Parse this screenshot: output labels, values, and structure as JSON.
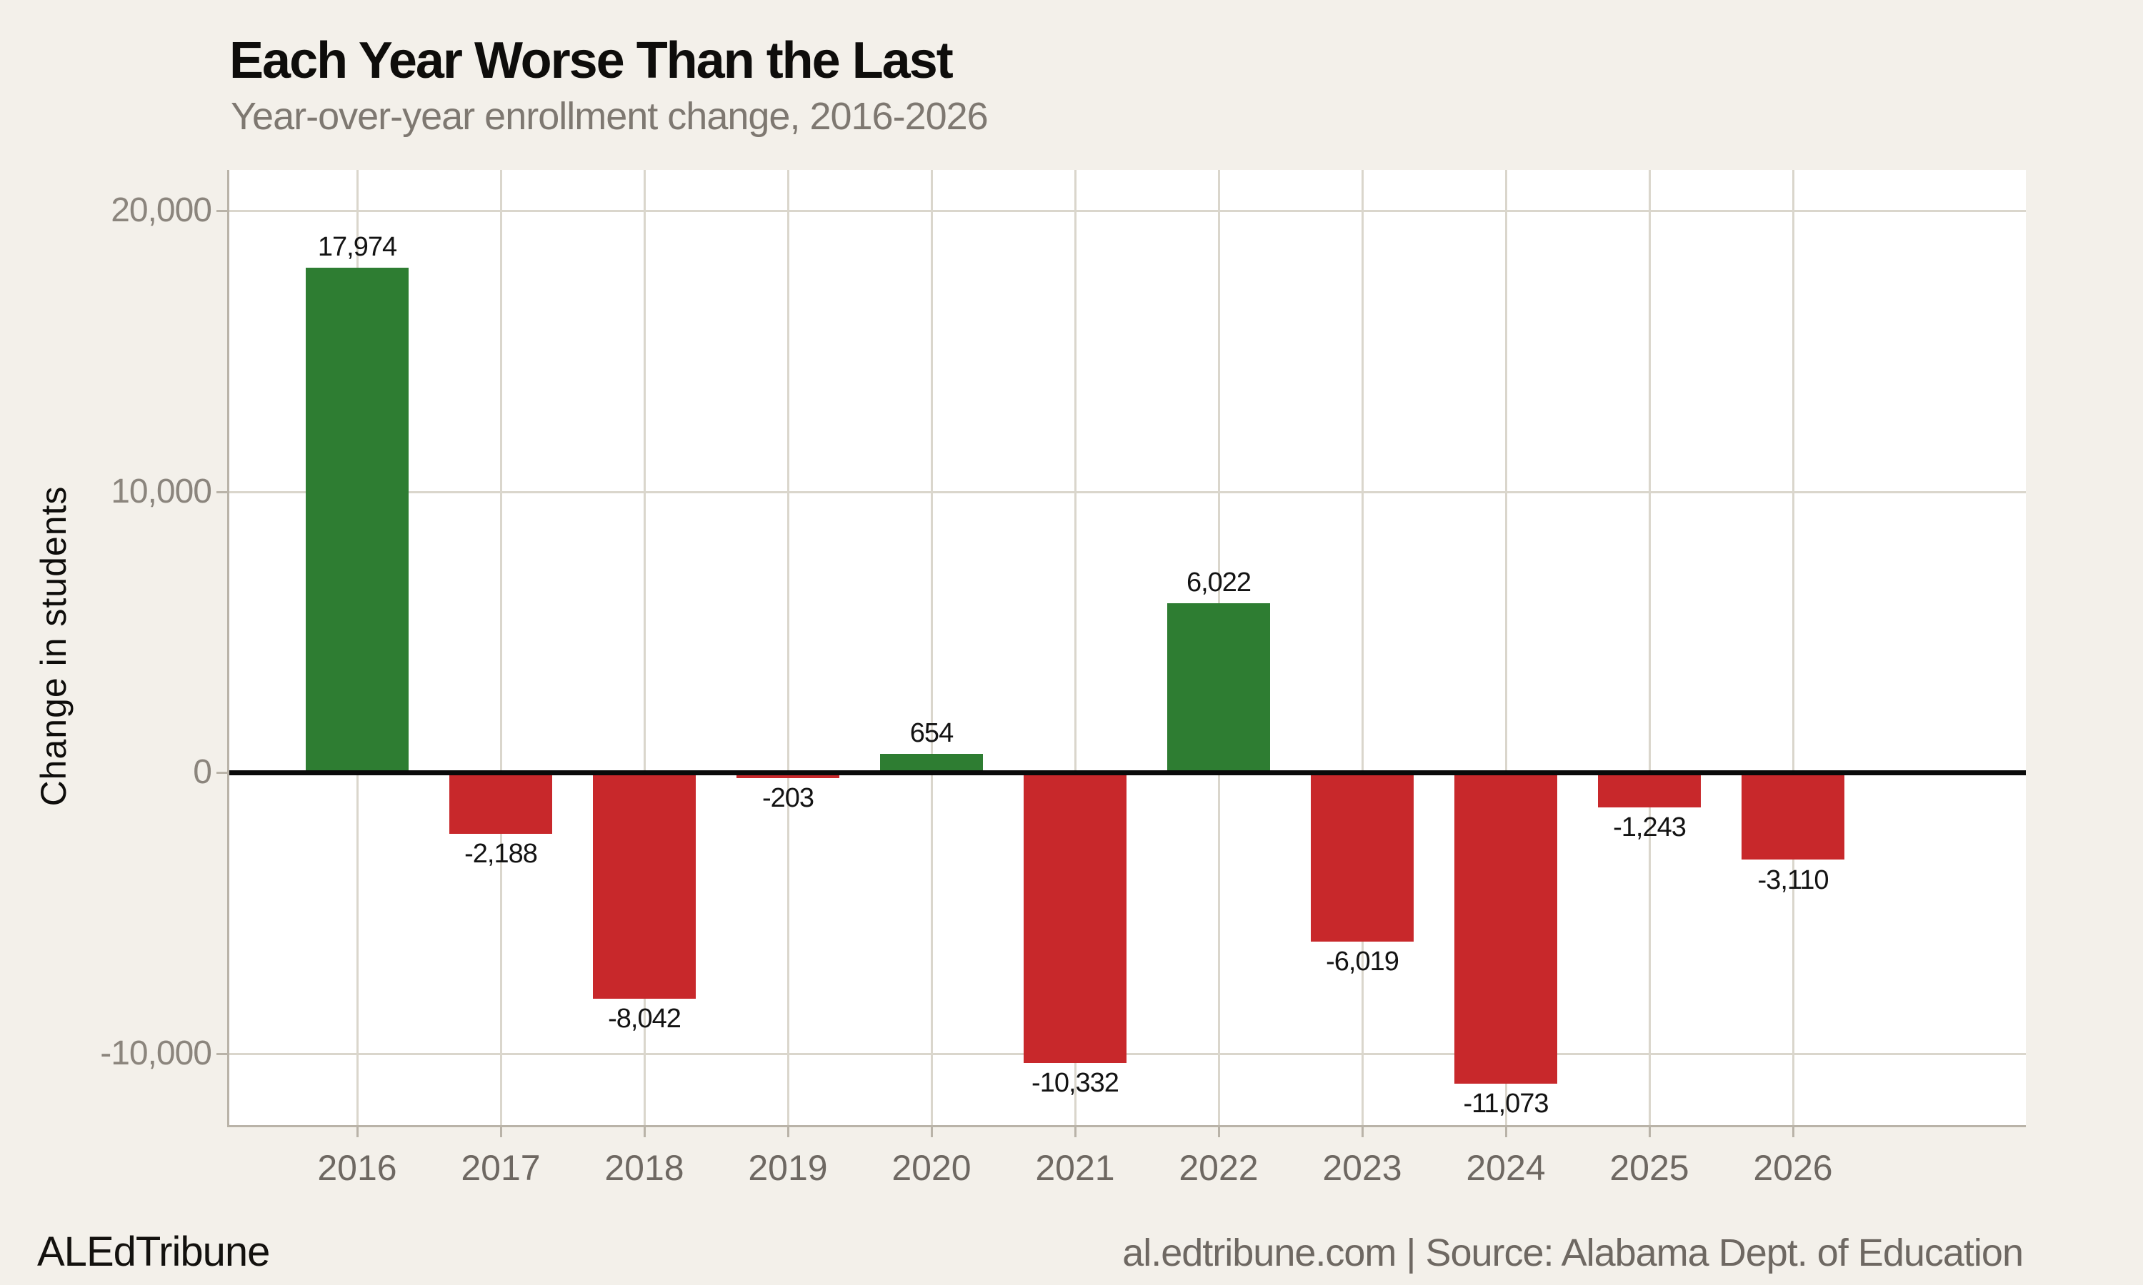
{
  "title": "Each Year Worse Than the Last",
  "subtitle": "Year-over-year enrollment change, 2016-2026",
  "footer": {
    "brand": "ALEdTribune",
    "source": "al.edtribune.com | Source: Alabama Dept. of Education"
  },
  "colors": {
    "background": "#f3f0ea",
    "plot_background": "#ffffff",
    "gridline": "#dad6cc",
    "axis_line": "#b9b3a8",
    "zero_line": "#0a0a0a",
    "positive_bar": "#2e7d32",
    "negative_bar": "#c8282b",
    "title_text": "#0e0d0b",
    "subtitle_text": "#7e7871",
    "y_tick_text": "#8b857d",
    "x_tick_text": "#6e6862",
    "value_label_text": "#131313",
    "footer_source_text": "#6e6862"
  },
  "chart_data": {
    "type": "bar",
    "title": "Each Year Worse Than the Last",
    "subtitle": "Year-over-year enrollment change, 2016-2026",
    "categories": [
      "2016",
      "2017",
      "2018",
      "2019",
      "2020",
      "2021",
      "2022",
      "2023",
      "2024",
      "2025",
      "2026"
    ],
    "values": [
      17974,
      -2188,
      -8042,
      -203,
      654,
      -10332,
      6022,
      -6019,
      -11073,
      -1243,
      -3110
    ],
    "value_labels": [
      "17,974",
      "-2,188",
      "-8,042",
      "-203",
      "654",
      "-10,332",
      "6,022",
      "-6,019",
      "-11,073",
      "-1,243",
      "-3,110"
    ],
    "xlabel": "",
    "ylabel": "Change in students",
    "ylim": [
      -12550,
      21450
    ],
    "y_ticks": [
      {
        "value": 20000,
        "label": "20,000"
      },
      {
        "value": 10000,
        "label": "10,000"
      },
      {
        "value": 0,
        "label": "0"
      },
      {
        "value": -10000,
        "label": "-10,000"
      }
    ],
    "grid": true,
    "legend": false,
    "bar_color_rule": "green if positive, red if negative",
    "positive_color": "#2e7d32",
    "negative_color": "#c8282b"
  }
}
